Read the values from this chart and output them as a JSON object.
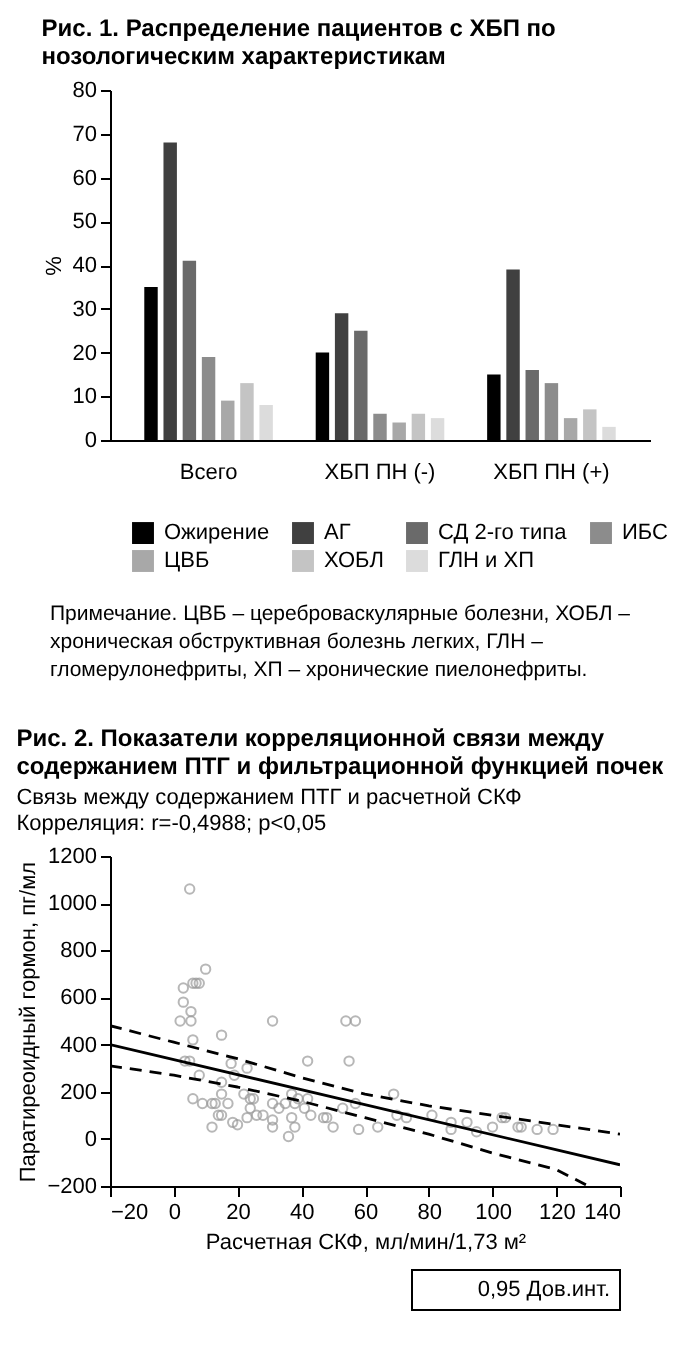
{
  "chart_data": [
    {
      "type": "bar",
      "title": "Рис. 1. Распределение пациентов с ХБП по нозологическим характеристикам",
      "ylabel": "%",
      "categories": [
        "Всего",
        "ХБП ПН (-)",
        "ХБП ПН (+)"
      ],
      "series": [
        {
          "name": "Ожирение",
          "color": "#000000",
          "values": [
            35,
            20,
            15
          ]
        },
        {
          "name": "АГ",
          "color": "#404040",
          "values": [
            68,
            29,
            39
          ]
        },
        {
          "name": "СД 2-го типа",
          "color": "#6a6a6a",
          "values": [
            41,
            25,
            16
          ]
        },
        {
          "name": "ИБС",
          "color": "#8c8c8c",
          "values": [
            19,
            6,
            13
          ]
        },
        {
          "name": "ЦВБ",
          "color": "#a8a8a8",
          "values": [
            9,
            4,
            5
          ]
        },
        {
          "name": "ХОБЛ",
          "color": "#c4c4c4",
          "values": [
            13,
            6,
            7
          ]
        },
        {
          "name": "ГЛН и ХП",
          "color": "#dcdcdc",
          "values": [
            8,
            5,
            3
          ]
        }
      ],
      "ylim": [
        0,
        80
      ],
      "yticks": [
        0,
        10,
        20,
        30,
        40,
        50,
        60,
        70,
        80
      ],
      "grid": false,
      "legend": "bottom",
      "annotations": [
        "Примечание. ЦВБ – цереброваскулярные болезни, ХОБЛ – хроническая обструктивная болезнь легких, ГЛН – гломерулонефриты, ХП – хронические пиелонефриты."
      ]
    },
    {
      "type": "scatter",
      "title": "Рис. 2. Показатели корреляционной связи между содержанием ПТГ и фильтрационной функцией почек",
      "subtitle": "Связь между содержанием ПТГ и расчетной СКФ",
      "xlabel": "Расчетная СКФ, мл/мин/1,73 м²",
      "ylabel": "Паратиреоидный гормон, пг/мл",
      "series": [
        {
          "type": "scatter",
          "color": "#999999",
          "marker": "circle",
          "x": [
            5,
            10,
            3,
            6,
            7,
            8,
            3,
            5.4,
            2,
            5.4,
            6,
            15,
            31,
            54,
            57,
            55,
            42,
            3.5,
            5,
            8,
            18,
            19,
            23,
            15,
            15,
            22,
            6,
            9,
            12,
            13,
            17,
            14,
            15,
            12,
            18.5,
            20,
            24,
            25,
            24,
            23,
            26,
            28,
            31,
            31,
            31,
            33,
            35,
            37,
            38,
            37,
            38,
            36,
            39,
            41,
            42,
            43,
            47,
            48,
            50,
            53,
            57,
            58,
            64,
            69,
            70,
            73,
            81,
            87,
            87,
            92,
            95,
            100,
            103,
            104,
            108,
            109,
            114,
            119
          ],
          "values": [
            1060,
            720,
            640,
            660,
            660,
            660,
            580,
            540,
            500,
            500,
            420,
            440,
            500,
            500,
            500,
            330,
            330,
            330,
            330,
            270,
            320,
            270,
            300,
            240,
            190,
            190,
            170,
            150,
            150,
            150,
            150,
            100,
            100,
            50,
            70,
            60,
            170,
            170,
            130,
            90,
            100,
            100,
            80,
            50,
            150,
            130,
            150,
            190,
            150,
            90,
            50,
            10,
            170,
            130,
            170,
            100,
            90,
            90,
            50,
            130,
            150,
            40,
            50,
            190,
            100,
            90,
            100,
            70,
            40,
            70,
            30,
            50,
            90,
            90,
            50,
            50,
            40,
            40
          ]
        },
        {
          "type": "line",
          "color": "#000000",
          "line_style": "solid",
          "x": [
            -20,
            140
          ],
          "values": [
            400,
            -110
          ]
        },
        {
          "type": "line",
          "color": "#000000",
          "line_style": "dashed",
          "x": [
            -20,
            0,
            20,
            40,
            60,
            80,
            100,
            120,
            140
          ],
          "values": [
            480,
            410,
            340,
            260,
            190,
            140,
            100,
            60,
            20
          ]
        },
        {
          "type": "line",
          "color": "#000000",
          "line_style": "dashed",
          "x": [
            -20,
            0,
            20,
            40,
            60,
            80,
            100,
            120,
            130
          ],
          "values": [
            310,
            270,
            220,
            160,
            90,
            20,
            -60,
            -130,
            -200
          ]
        }
      ],
      "xlim": [
        -20,
        140
      ],
      "xticks": [
        -20,
        0,
        20,
        40,
        60,
        80,
        100,
        120,
        140
      ],
      "ylim": [
        -200,
        1200
      ],
      "yticks": [
        -200,
        0,
        200,
        400,
        600,
        800,
        1000,
        1200
      ],
      "grid": false,
      "annotations": [
        "Корреляция: r=-0,4988; p<0,05",
        "0,95 Дов.инт."
      ]
    }
  ]
}
